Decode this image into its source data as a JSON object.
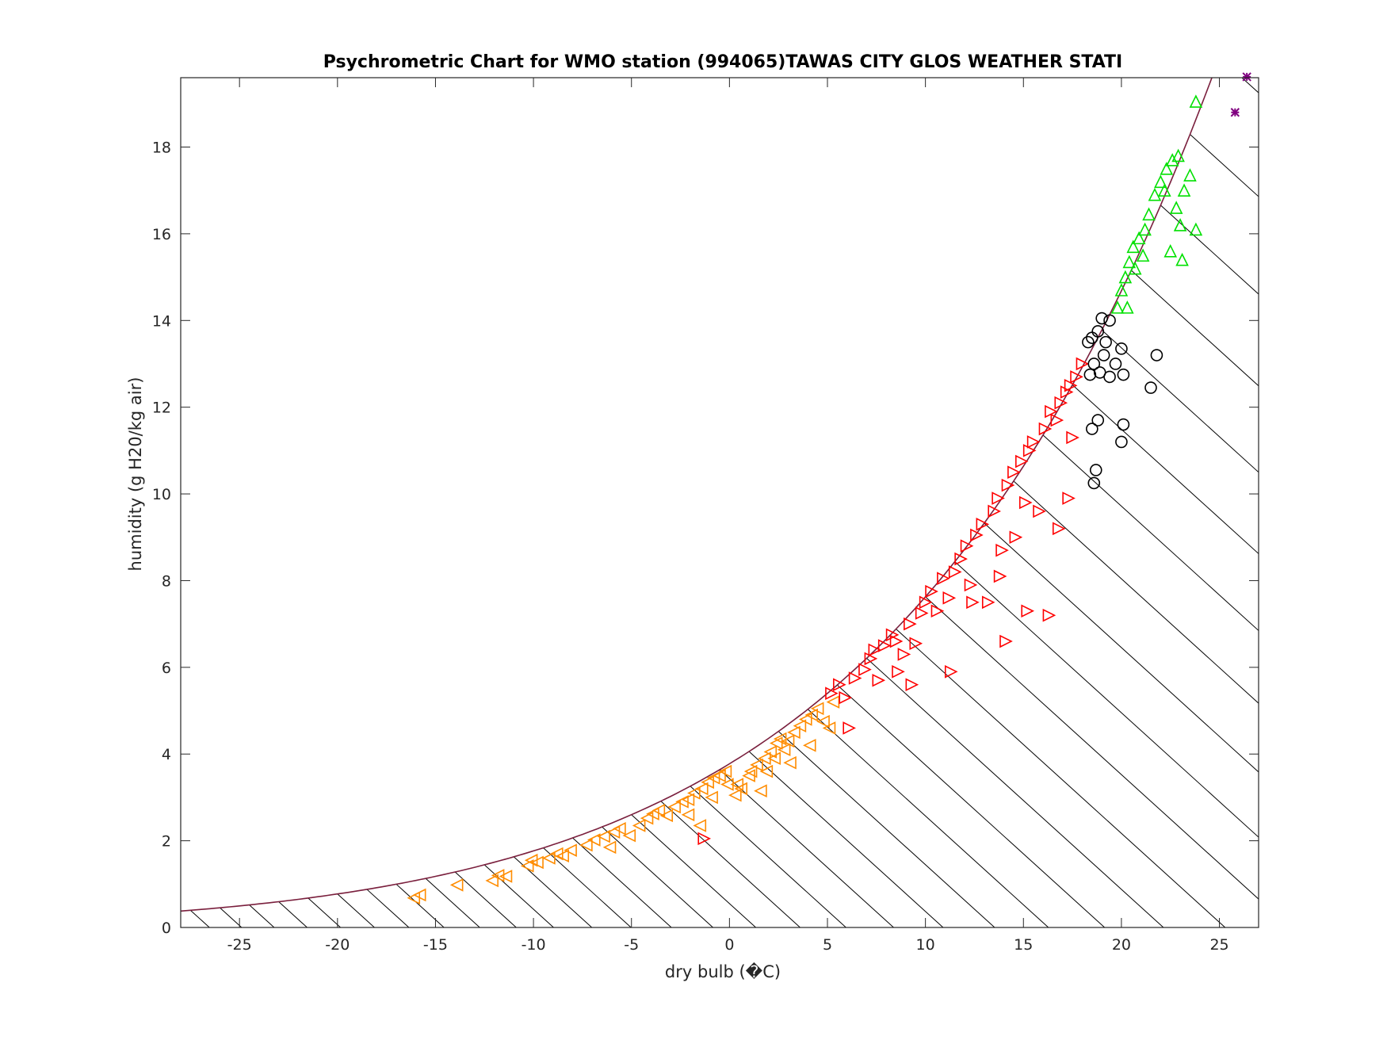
{
  "chart_data": {
    "type": "scatter",
    "title": "Psychrometric Chart for WMO station (994065)TAWAS CITY GLOS WEATHER STATI",
    "xlabel": "dry bulb (�C)",
    "ylabel": "humidity (g H20/kg air)",
    "xlim": [
      -28,
      27
    ],
    "ylim": [
      0,
      19.6
    ],
    "x_ticks": [
      -25,
      -20,
      -15,
      -10,
      -5,
      0,
      5,
      10,
      15,
      20,
      25
    ],
    "y_ticks": [
      0,
      2,
      4,
      6,
      8,
      10,
      12,
      14,
      16,
      18
    ],
    "grid": false,
    "legend": "none",
    "saturation_curve_color": "#7a1f3d",
    "hatch_lines": {
      "description": "diagonal constant wet-bulb lines under the saturation curve",
      "t_wet_start": -29,
      "t_wet_end": 27,
      "t_wet_step": 1.5,
      "color": "#000000"
    },
    "series": [
      {
        "marker": "triangle-left",
        "color": "#ff8c00",
        "points": [
          [
            -16.1,
            0.68
          ],
          [
            -15.8,
            0.75
          ],
          [
            -13.9,
            0.98
          ],
          [
            -12.1,
            1.08
          ],
          [
            -11.8,
            1.2
          ],
          [
            -11.4,
            1.18
          ],
          [
            -10.3,
            1.42
          ],
          [
            -10.1,
            1.55
          ],
          [
            -9.8,
            1.5
          ],
          [
            -9.2,
            1.6
          ],
          [
            -8.8,
            1.7
          ],
          [
            -8.5,
            1.65
          ],
          [
            -8.1,
            1.78
          ],
          [
            -7.3,
            1.9
          ],
          [
            -6.9,
            2.02
          ],
          [
            -6.4,
            2.1
          ],
          [
            -6.1,
            1.85
          ],
          [
            -5.9,
            2.2
          ],
          [
            -5.6,
            2.28
          ],
          [
            -5.1,
            2.12
          ],
          [
            -4.6,
            2.35
          ],
          [
            -4.2,
            2.52
          ],
          [
            -3.9,
            2.62
          ],
          [
            -3.6,
            2.7
          ],
          [
            -3.2,
            2.58
          ],
          [
            -2.8,
            2.78
          ],
          [
            -2.4,
            2.9
          ],
          [
            -2.1,
            2.95
          ],
          [
            -1.8,
            3.1
          ],
          [
            -1.4,
            3.2
          ],
          [
            -1.1,
            3.35
          ],
          [
            -0.8,
            3.45
          ],
          [
            -0.5,
            3.5
          ],
          [
            -0.2,
            3.6
          ],
          [
            -0.1,
            3.3
          ],
          [
            0.3,
            3.05
          ],
          [
            0.6,
            3.2
          ],
          [
            1.0,
            3.5
          ],
          [
            1.4,
            3.75
          ],
          [
            1.8,
            3.9
          ],
          [
            2.1,
            4.05
          ],
          [
            2.4,
            4.25
          ],
          [
            2.6,
            4.35
          ],
          [
            2.8,
            4.1
          ],
          [
            3.1,
            3.8
          ],
          [
            3.3,
            4.5
          ],
          [
            3.6,
            4.65
          ],
          [
            3.9,
            4.8
          ],
          [
            4.2,
            4.9
          ],
          [
            4.5,
            5.05
          ],
          [
            4.8,
            4.75
          ],
          [
            5.1,
            4.6
          ],
          [
            5.3,
            5.2
          ],
          [
            -2.1,
            2.6
          ],
          [
            -1.5,
            2.35
          ],
          [
            -0.9,
            3.0
          ],
          [
            0.4,
            3.3
          ],
          [
            1.1,
            3.6
          ],
          [
            1.9,
            3.6
          ],
          [
            2.3,
            3.9
          ],
          [
            1.6,
            3.15
          ],
          [
            3.0,
            4.3
          ],
          [
            4.1,
            4.2
          ]
        ]
      },
      {
        "marker": "triangle-right",
        "color": "#ff0000",
        "points": [
          [
            -1.3,
            2.05
          ],
          [
            5.2,
            5.4
          ],
          [
            5.6,
            5.6
          ],
          [
            5.9,
            5.3
          ],
          [
            6.1,
            4.6
          ],
          [
            6.4,
            5.75
          ],
          [
            6.9,
            5.95
          ],
          [
            7.2,
            6.2
          ],
          [
            7.4,
            6.4
          ],
          [
            7.6,
            5.7
          ],
          [
            7.9,
            6.5
          ],
          [
            8.3,
            6.75
          ],
          [
            8.6,
            5.9
          ],
          [
            8.9,
            6.3
          ],
          [
            9.2,
            7.0
          ],
          [
            9.5,
            6.55
          ],
          [
            9.8,
            7.25
          ],
          [
            10.0,
            7.5
          ],
          [
            10.3,
            7.75
          ],
          [
            10.6,
            7.3
          ],
          [
            10.9,
            8.05
          ],
          [
            11.2,
            7.6
          ],
          [
            11.5,
            8.2
          ],
          [
            11.8,
            8.5
          ],
          [
            12.1,
            8.8
          ],
          [
            12.3,
            7.9
          ],
          [
            12.6,
            9.05
          ],
          [
            12.9,
            9.3
          ],
          [
            13.2,
            7.5
          ],
          [
            13.5,
            9.6
          ],
          [
            13.7,
            9.9
          ],
          [
            13.9,
            8.7
          ],
          [
            14.2,
            10.2
          ],
          [
            14.5,
            10.5
          ],
          [
            14.6,
            9.0
          ],
          [
            14.9,
            10.75
          ],
          [
            15.1,
            9.8
          ],
          [
            15.3,
            11.0
          ],
          [
            15.5,
            11.2
          ],
          [
            15.8,
            9.6
          ],
          [
            16.1,
            11.5
          ],
          [
            16.4,
            11.9
          ],
          [
            16.7,
            11.7
          ],
          [
            16.9,
            12.1
          ],
          [
            17.2,
            12.35
          ],
          [
            17.4,
            12.5
          ],
          [
            17.5,
            11.3
          ],
          [
            17.7,
            12.7
          ],
          [
            18.0,
            13.0
          ],
          [
            8.5,
            6.6
          ],
          [
            9.3,
            5.6
          ],
          [
            11.3,
            5.9
          ],
          [
            14.1,
            6.6
          ],
          [
            15.2,
            7.3
          ],
          [
            16.3,
            7.2
          ],
          [
            16.8,
            9.2
          ],
          [
            17.3,
            9.9
          ],
          [
            12.4,
            7.5
          ],
          [
            13.8,
            8.1
          ]
        ]
      },
      {
        "marker": "circle",
        "color": "#000000",
        "points": [
          [
            18.3,
            13.5
          ],
          [
            18.5,
            13.6
          ],
          [
            18.8,
            13.75
          ],
          [
            19.0,
            14.05
          ],
          [
            19.2,
            13.5
          ],
          [
            19.4,
            14.0
          ],
          [
            18.6,
            13.0
          ],
          [
            19.1,
            13.2
          ],
          [
            19.7,
            13.0
          ],
          [
            20.0,
            13.35
          ],
          [
            20.1,
            12.75
          ],
          [
            19.4,
            12.7
          ],
          [
            18.9,
            12.8
          ],
          [
            18.4,
            12.75
          ],
          [
            21.8,
            13.2
          ],
          [
            21.5,
            12.45
          ],
          [
            18.8,
            11.7
          ],
          [
            18.5,
            11.5
          ],
          [
            20.0,
            11.2
          ],
          [
            20.1,
            11.6
          ],
          [
            18.7,
            10.55
          ],
          [
            18.6,
            10.25
          ]
        ]
      },
      {
        "marker": "triangle-up",
        "color": "#00e000",
        "points": [
          [
            19.8,
            14.3
          ],
          [
            20.0,
            14.7
          ],
          [
            20.2,
            15.0
          ],
          [
            20.4,
            15.35
          ],
          [
            20.6,
            15.7
          ],
          [
            20.9,
            15.9
          ],
          [
            21.2,
            16.1
          ],
          [
            21.4,
            16.45
          ],
          [
            21.7,
            16.9
          ],
          [
            22.0,
            17.2
          ],
          [
            22.3,
            17.5
          ],
          [
            22.6,
            17.7
          ],
          [
            22.9,
            17.8
          ],
          [
            23.2,
            17.0
          ],
          [
            23.5,
            17.35
          ],
          [
            23.8,
            16.1
          ],
          [
            23.0,
            16.2
          ],
          [
            22.8,
            16.6
          ],
          [
            22.5,
            15.6
          ],
          [
            23.1,
            15.4
          ],
          [
            20.7,
            15.2
          ],
          [
            21.1,
            15.5
          ],
          [
            20.3,
            14.3
          ],
          [
            22.2,
            17.0
          ],
          [
            23.8,
            19.05
          ]
        ]
      },
      {
        "marker": "asterisk",
        "color": "#800080",
        "points": [
          [
            26.4,
            19.62
          ],
          [
            25.8,
            18.8
          ]
        ]
      }
    ]
  }
}
